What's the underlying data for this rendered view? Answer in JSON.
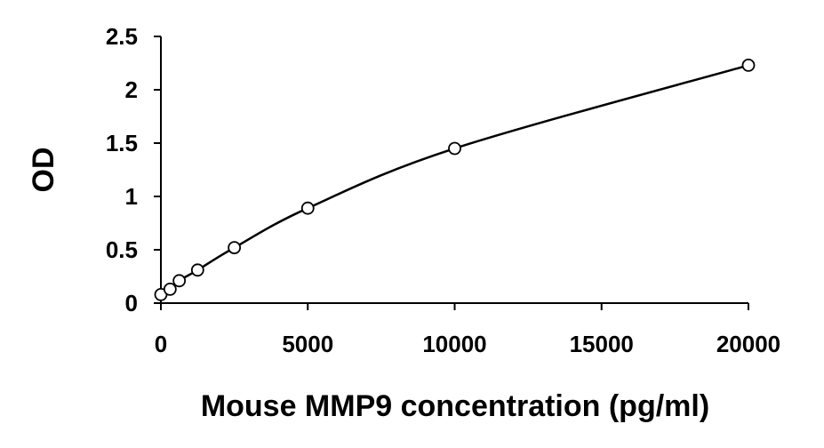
{
  "chart_data": {
    "type": "scatter",
    "title": "",
    "xlabel": "Mouse MMP9 concentration (pg/ml)",
    "ylabel": "OD",
    "xlim": [
      0,
      20000
    ],
    "ylim": [
      0,
      2.5
    ],
    "xticks": [
      0,
      5000,
      10000,
      15000,
      20000
    ],
    "yticks": [
      0,
      0.5,
      1,
      1.5,
      2,
      2.5
    ],
    "xtick_labels": [
      "0",
      "5000",
      "10000",
      "15000",
      "20000"
    ],
    "ytick_labels": [
      "0",
      "0.5",
      "1",
      "1.5",
      "2",
      "2.5"
    ],
    "grid": false,
    "legend": "none",
    "marker": "open-circle",
    "trendline": "smooth curve through points",
    "series": [
      {
        "x": [
          0,
          312.5,
          625,
          1250,
          2500,
          5000,
          10000,
          20000
        ],
        "y": [
          0.08,
          0.13,
          0.21,
          0.31,
          0.52,
          0.89,
          1.45,
          2.23
        ]
      }
    ],
    "colors": {
      "line": "#000000",
      "marker": "#000000",
      "axis": "#000000"
    }
  }
}
